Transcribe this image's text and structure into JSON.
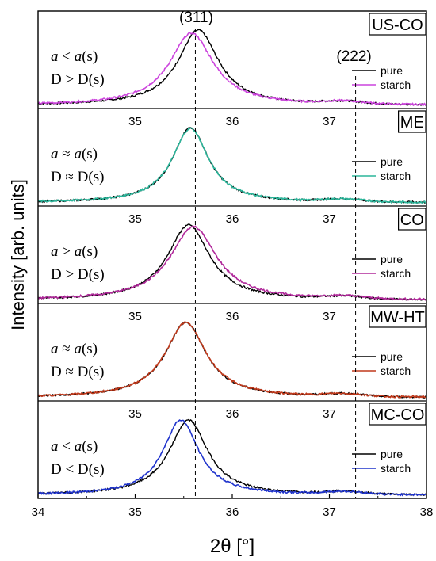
{
  "chart_data": {
    "type": "line",
    "xlabel": "2θ [°]",
    "ylabel": "Intensity [arb. units]",
    "xlim": [
      34,
      38
    ],
    "xticks": [
      "34",
      "35",
      "36",
      "37",
      "38"
    ],
    "inner_xticks": [
      "35",
      "36",
      "37"
    ],
    "peaks": [
      {
        "label": "(311)",
        "x": 35.62
      },
      {
        "label": "(222)",
        "x": 37.27
      }
    ],
    "legend_entries": [
      "pure",
      "starch"
    ],
    "panels": [
      {
        "name": "US-CO",
        "annotation_line1": {
          "sym": "a",
          "rel": " < ",
          "rhs_it": "a",
          "rhs": "(s)"
        },
        "annotation_line2": "D > D(s)",
        "series": [
          {
            "name": "pure",
            "color": "#000000",
            "center": 35.65,
            "width": 0.255,
            "peak": 1.0
          },
          {
            "name": "starch",
            "color": "#cc44dd",
            "center": 35.58,
            "width": 0.275,
            "peak": 0.96
          }
        ]
      },
      {
        "name": "ME",
        "annotation_line1": {
          "sym": "a",
          "rel": " ≈ ",
          "rhs_it": "a",
          "rhs": "(s)"
        },
        "annotation_line2": "D ≈ D(s)",
        "series": [
          {
            "name": "pure",
            "color": "#000000",
            "center": 35.57,
            "width": 0.225,
            "peak": 1.0
          },
          {
            "name": "starch",
            "color": "#2cb59a",
            "center": 35.57,
            "width": 0.228,
            "peak": 0.99
          }
        ]
      },
      {
        "name": "CO",
        "annotation_line1": {
          "sym": "a",
          "rel": " > ",
          "rhs_it": "a",
          "rhs": "(s)"
        },
        "annotation_line2": "D > D(s)",
        "series": [
          {
            "name": "pure",
            "color": "#000000",
            "center": 35.55,
            "width": 0.265,
            "peak": 1.0
          },
          {
            "name": "starch",
            "color": "#b0289a",
            "center": 35.6,
            "width": 0.29,
            "peak": 0.98
          }
        ]
      },
      {
        "name": "MW-HT",
        "annotation_line1": {
          "sym": "a",
          "rel": " ≈ ",
          "rhs_it": "a",
          "rhs": "(s)"
        },
        "annotation_line2": "D ≈ D(s)",
        "series": [
          {
            "name": "pure",
            "color": "#000000",
            "center": 35.52,
            "width": 0.255,
            "peak": 1.0
          },
          {
            "name": "starch",
            "color": "#c0391b",
            "center": 35.52,
            "width": 0.258,
            "peak": 1.0
          }
        ]
      },
      {
        "name": "MC-CO",
        "annotation_line1": {
          "sym": "a",
          "rel": " < ",
          "rhs_it": "a",
          "rhs": "(s)"
        },
        "annotation_line2": "D < D(s)",
        "series": [
          {
            "name": "pure",
            "color": "#000000",
            "center": 35.55,
            "width": 0.24,
            "peak": 1.0
          },
          {
            "name": "starch",
            "color": "#1f33cc",
            "center": 35.47,
            "width": 0.225,
            "peak": 1.0
          }
        ]
      }
    ]
  }
}
